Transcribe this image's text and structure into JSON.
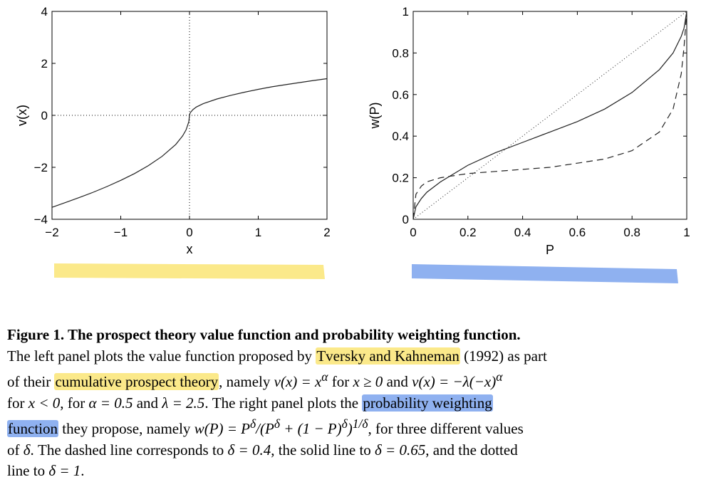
{
  "chart_data": [
    {
      "type": "line",
      "title": "",
      "xlabel": "x",
      "ylabel": "v(x)",
      "xlim": [
        -2,
        2
      ],
      "ylim": [
        -4,
        4
      ],
      "xticks": [
        -2,
        -1,
        0,
        1,
        2
      ],
      "yticks": [
        -4,
        -2,
        0,
        2,
        4
      ],
      "xtick_labels": [
        "−2",
        "−1",
        "0",
        "1",
        "2"
      ],
      "ytick_labels": [
        "−4",
        "−2",
        "0",
        "2",
        "4"
      ],
      "reference_lines": [
        {
          "axis": "x",
          "value": 0,
          "style": "dotted"
        },
        {
          "axis": "y",
          "value": 0,
          "style": "dotted"
        }
      ],
      "series": [
        {
          "style": "solid",
          "x": [
            -2,
            -1.8,
            -1.6,
            -1.4,
            -1.2,
            -1.0,
            -0.8,
            -0.6,
            -0.4,
            -0.2,
            -0.1,
            -0.05,
            -0.01,
            0,
            0.01,
            0.05,
            0.1,
            0.2,
            0.4,
            0.6,
            0.8,
            1.0,
            1.2,
            1.4,
            1.6,
            1.8,
            2.0
          ],
          "y": [
            -3.54,
            -3.35,
            -3.16,
            -2.96,
            -2.74,
            -2.5,
            -2.24,
            -1.94,
            -1.58,
            -1.12,
            -0.79,
            -0.56,
            -0.25,
            0,
            0.1,
            0.22,
            0.32,
            0.45,
            0.63,
            0.77,
            0.89,
            1.0,
            1.1,
            1.18,
            1.26,
            1.34,
            1.41
          ]
        }
      ],
      "grid": false
    },
    {
      "type": "line",
      "title": "",
      "xlabel": "P",
      "ylabel": "w(P)",
      "xlim": [
        0,
        1
      ],
      "ylim": [
        0,
        1
      ],
      "xticks": [
        0,
        0.2,
        0.4,
        0.6,
        0.8,
        1
      ],
      "yticks": [
        0,
        0.2,
        0.4,
        0.6,
        0.8,
        1
      ],
      "xtick_labels": [
        "0",
        "0.2",
        "0.4",
        "0.6",
        "0.8",
        "1"
      ],
      "ytick_labels": [
        "0",
        "0.2",
        "0.4",
        "0.6",
        "0.8",
        "1"
      ],
      "series": [
        {
          "style": "dashed",
          "x": [
            0,
            0.01,
            0.03,
            0.05,
            0.1,
            0.2,
            0.3,
            0.4,
            0.5,
            0.6,
            0.7,
            0.8,
            0.9,
            0.95,
            0.98,
            0.99,
            1.0
          ],
          "y": [
            0,
            0.12,
            0.16,
            0.18,
            0.2,
            0.22,
            0.23,
            0.24,
            0.25,
            0.27,
            0.29,
            0.33,
            0.42,
            0.53,
            0.7,
            0.83,
            1.0
          ]
        },
        {
          "style": "solid",
          "x": [
            0,
            0.01,
            0.03,
            0.05,
            0.1,
            0.2,
            0.3,
            0.4,
            0.5,
            0.6,
            0.7,
            0.8,
            0.9,
            0.95,
            0.98,
            0.99,
            1.0
          ],
          "y": [
            0,
            0.06,
            0.1,
            0.13,
            0.18,
            0.26,
            0.32,
            0.37,
            0.42,
            0.47,
            0.53,
            0.61,
            0.72,
            0.8,
            0.88,
            0.92,
            1.0
          ]
        },
        {
          "style": "dotted",
          "x": [
            0,
            1
          ],
          "y": [
            0,
            1
          ]
        }
      ],
      "grid": false
    }
  ],
  "caption": {
    "title": "Figure 1. The prospect theory value function and probability weighting function.",
    "l2_a": "The left panel plots the value function proposed by ",
    "l2_hl": "Tversky and Kahneman",
    "l2_b": " (1992) as part",
    "l3_a": "of their ",
    "l3_hl": "cumulative prospect theory",
    "l3_b": ", namely ",
    "l3_m1": "v(x) = x",
    "l3_m1_sup": "α",
    "l3_c": " for ",
    "l3_m2": "x ≥ 0",
    "l3_d": " and ",
    "l3_m3": "v(x) = −λ(−x)",
    "l3_m3_sup": "α",
    "l4_a": "for ",
    "l4_m1": "x < 0",
    "l4_b": ", for ",
    "l4_m2": "α = 0.5",
    "l4_c": " and ",
    "l4_m3": "λ = 2.5",
    "l4_d": ". The right panel plots the ",
    "l4_hl": "probability weighting",
    "l5_hl": "function",
    "l5_a": " they propose, namely ",
    "l5_m1": "w(P) = P",
    "l5_m1_sup": "δ",
    "l5_m2": "/(P",
    "l5_m2_sup": "δ",
    "l5_m3": " + (1 − P)",
    "l5_m3_sup": "δ",
    "l5_m4": ")",
    "l5_m4_sup": "1/δ",
    "l5_b": ", for three different values",
    "l6_a": "of ",
    "l6_m1": "δ",
    "l6_b": ". The dashed line corresponds to ",
    "l6_m2": "δ = 0.4",
    "l6_c": ", the solid line to ",
    "l6_m3": "δ = 0.65",
    "l6_d": ", and the dotted",
    "l7_a": "line to ",
    "l7_m1": "δ = 1",
    "l7_b": "."
  },
  "colors": {
    "highlight_yellow": "#fbe98a",
    "highlight_blue": "#8fb1f0",
    "line": "#222222"
  }
}
